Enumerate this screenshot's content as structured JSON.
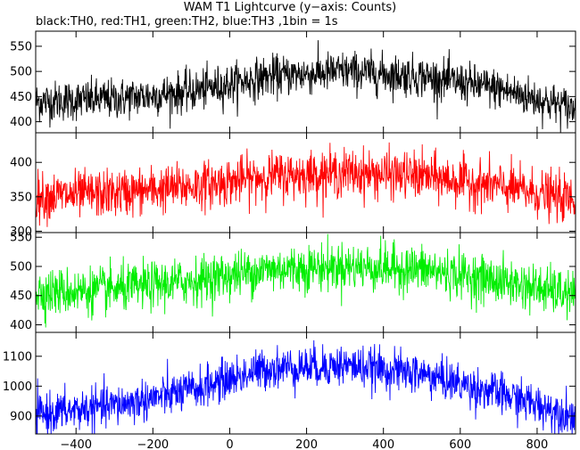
{
  "title": "WAM T1 Lightcurve (y−axis: Counts)",
  "subtitle": "black:TH0, red:TH1, green:TH2, blue:TH3 ,1bin = 1s",
  "chart_data": {
    "type": "line",
    "xlim": [
      -505,
      900
    ],
    "x_ticks": [
      -400,
      -200,
      0,
      200,
      400,
      600,
      800
    ],
    "grid": false,
    "legend": "none",
    "panels": [
      {
        "name": "TH0",
        "color": "#000000",
        "ylim": [
          378,
          580
        ],
        "y_ticks": [
          400,
          450,
          500,
          550
        ],
        "trend": {
          "x": [
            -500,
            -300,
            -100,
            0,
            100,
            300,
            500,
            700,
            900
          ],
          "y": [
            440,
            445,
            460,
            475,
            490,
            500,
            490,
            465,
            425
          ]
        },
        "scatter_sigma": 20
      },
      {
        "name": "TH1",
        "color": "#ff0000",
        "ylim": [
          298,
          443
        ],
        "y_ticks": [
          300,
          350,
          400
        ],
        "trend": {
          "x": [
            -500,
            -300,
            -100,
            0,
            100,
            300,
            500,
            700,
            900
          ],
          "y": [
            350,
            355,
            365,
            372,
            380,
            385,
            380,
            365,
            345
          ]
        },
        "scatter_sigma": 17
      },
      {
        "name": "TH2",
        "color": "#00ee00",
        "ylim": [
          387,
          558
        ],
        "y_ticks": [
          400,
          450,
          500,
          550
        ],
        "trend": {
          "x": [
            -500,
            -300,
            -100,
            0,
            100,
            300,
            500,
            700,
            900
          ],
          "y": [
            455,
            460,
            475,
            485,
            495,
            500,
            495,
            475,
            450
          ]
        },
        "scatter_sigma": 20
      },
      {
        "name": "TH3",
        "color": "#0000ff",
        "ylim": [
          840,
          1180
        ],
        "y_ticks": [
          900,
          1000,
          1100
        ],
        "trend": {
          "x": [
            -500,
            -300,
            -100,
            0,
            100,
            300,
            500,
            700,
            900
          ],
          "y": [
            905,
            935,
            985,
            1025,
            1060,
            1070,
            1040,
            975,
            900
          ]
        },
        "scatter_sigma": 34
      }
    ]
  }
}
